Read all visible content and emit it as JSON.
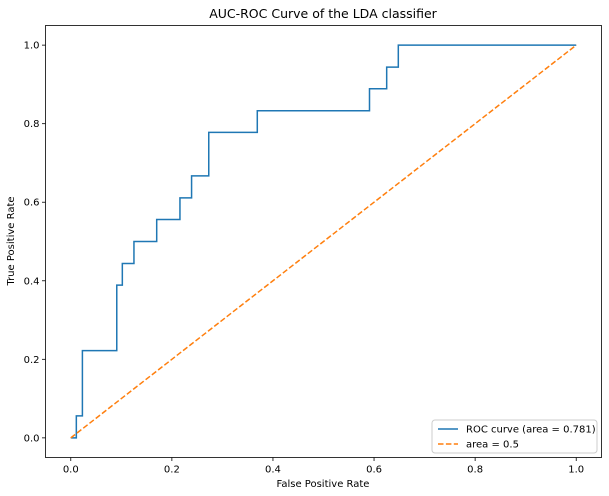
{
  "chart_data": {
    "type": "line",
    "title": "AUC-ROC Curve of the LDA classifier",
    "xlabel": "False Positive Rate",
    "ylabel": "True Positive Rate",
    "xlim": [
      -0.05,
      1.05
    ],
    "ylim": [
      -0.05,
      1.05
    ],
    "x_ticks": [
      0.0,
      0.2,
      0.4,
      0.6,
      0.8,
      1.0
    ],
    "y_ticks": [
      0.0,
      0.2,
      0.4,
      0.6,
      0.8,
      1.0
    ],
    "x_tick_labels": [
      "0.0",
      "0.2",
      "0.4",
      "0.6",
      "0.8",
      "1.0"
    ],
    "y_tick_labels": [
      "0.0",
      "0.2",
      "0.4",
      "0.6",
      "0.8",
      "1.0"
    ],
    "grid": false,
    "legend_position": "lower-right",
    "series": [
      {
        "name": "ROC curve (area = 0.781)",
        "color": "#1f77b4",
        "style": "solid",
        "x": [
          0.0,
          0.011,
          0.011,
          0.023,
          0.023,
          0.091,
          0.091,
          0.102,
          0.102,
          0.125,
          0.125,
          0.17,
          0.17,
          0.216,
          0.216,
          0.239,
          0.239,
          0.273,
          0.273,
          0.369,
          0.369,
          0.591,
          0.591,
          0.625,
          0.625,
          0.648,
          0.648,
          1.0
        ],
        "y": [
          0.0,
          0.0,
          0.056,
          0.056,
          0.222,
          0.222,
          0.389,
          0.389,
          0.444,
          0.444,
          0.5,
          0.5,
          0.556,
          0.556,
          0.611,
          0.611,
          0.667,
          0.667,
          0.778,
          0.778,
          0.833,
          0.833,
          0.889,
          0.889,
          0.944,
          0.944,
          1.0,
          1.0
        ]
      },
      {
        "name": "area = 0.5",
        "color": "#ff7f0e",
        "style": "dashed",
        "x": [
          0.0,
          1.0
        ],
        "y": [
          0.0,
          1.0
        ]
      }
    ]
  }
}
